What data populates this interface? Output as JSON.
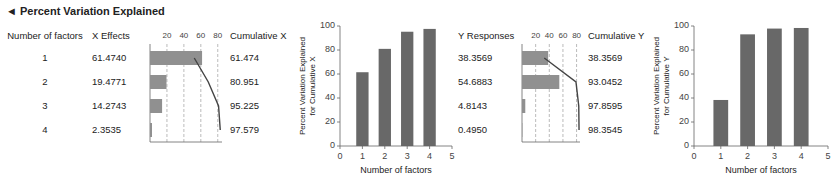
{
  "chart_data": [
    {
      "type": "bar",
      "orientation": "horizontal",
      "title": "◄ Percent Variation Explained",
      "ylabel": "Number of factors",
      "categories": [
        "1",
        "2",
        "3",
        "4"
      ],
      "series": [
        {
          "name": "X Effects",
          "type": "bar",
          "color": "#909090",
          "values": [
            61.474,
            19.4771,
            14.2743,
            2.3535
          ],
          "value_labels": [
            "61.4740",
            "19.4771",
            "14.2743",
            "2.3535"
          ]
        },
        {
          "name": "Cumulative X",
          "type": "line",
          "axis": "y2",
          "color": "#444444",
          "values": [
            61.474,
            80.951,
            95.225,
            97.579
          ]
        }
      ],
      "xlim": [
        0,
        85
      ],
      "xticks": [
        20,
        40,
        60,
        80
      ],
      "y2lim": [
        0,
        100
      ],
      "grid": true,
      "data_labels": true
    },
    {
      "type": "bar",
      "x": [
        1,
        2,
        3,
        4
      ],
      "values": [
        61.474,
        80.951,
        95.225,
        97.579
      ],
      "color": "#686868",
      "xlim": [
        0,
        5
      ],
      "xticks": [
        0,
        1,
        2,
        3,
        4,
        5
      ],
      "ylim": [
        0,
        100
      ],
      "yticks": [
        0,
        20,
        40,
        60,
        80,
        100
      ],
      "xlabel": "Number of factors",
      "ylabel": "Percent Variation Explained\nfor Cumulative X",
      "grid": false
    },
    {
      "type": "bar",
      "orientation": "horizontal",
      "categories": [
        null,
        null,
        null,
        null
      ],
      "series": [
        {
          "name": "Y Responses",
          "type": "bar",
          "color": "#909090",
          "values": [
            38.3569,
            54.6883,
            4.8143,
            0.495
          ],
          "value_labels": [
            "38.3569",
            "54.6883",
            "4.8143",
            "0.4950"
          ]
        },
        {
          "name": "Cumulative Y",
          "type": "line",
          "axis": "y2",
          "color": "#444444",
          "values": [
            38.3569,
            93.0452,
            97.8595,
            98.3545
          ]
        }
      ],
      "xlim": [
        0,
        85
      ],
      "xticks": [
        20,
        40,
        60,
        80
      ],
      "y2lim": [
        0,
        100
      ],
      "grid": true,
      "data_labels": true
    },
    {
      "type": "bar",
      "x": [
        1,
        2,
        3,
        4
      ],
      "values": [
        38.3569,
        93.0452,
        97.8595,
        98.3545
      ],
      "color": "#686868",
      "xlim": [
        0,
        5
      ],
      "xticks": [
        0,
        1,
        2,
        3,
        4,
        5
      ],
      "ylim": [
        0,
        100
      ],
      "yticks": [
        0,
        20,
        40,
        60,
        80,
        100
      ],
      "xlabel": "Number of factors",
      "ylabel": "Percent Variation Explained\nfor Cumulative Y",
      "grid": false
    }
  ]
}
